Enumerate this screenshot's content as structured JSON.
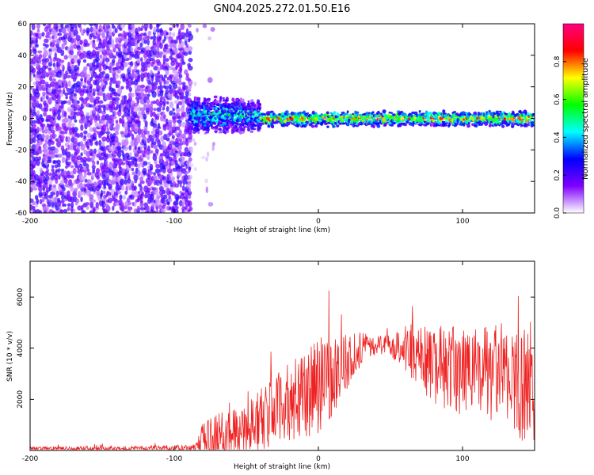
{
  "title": "GN04.2025.272.01.50.E16",
  "chart_data": [
    {
      "type": "heatmap",
      "name": "spectrogram",
      "xlabel": "Height of straight line (km)",
      "ylabel": "Frequency (Hz)",
      "xlim": [
        -200,
        150
      ],
      "ylim": [
        -60,
        60
      ],
      "xticks": [
        -200,
        -100,
        0,
        100
      ],
      "xtick_labels": [
        "-200",
        "-100",
        "0",
        "100"
      ],
      "yticks": [
        -60,
        -40,
        -20,
        0,
        20,
        40,
        60
      ],
      "ytick_labels": [
        "-60",
        "-40",
        "-20",
        "0",
        "20",
        "40",
        "60"
      ],
      "colorbar": {
        "label": "Normalized spectral amplitude",
        "range": [
          0,
          1
        ],
        "ticks": [
          0,
          0.2,
          0.4,
          0.6,
          0.8
        ],
        "tick_labels": [
          "0.0",
          "0.2",
          "0.4",
          "0.6",
          "0.8"
        ],
        "colormap": [
          "#ffffff",
          "#7f00ff",
          "#0000ff",
          "#00ffff",
          "#00ff00",
          "#ffff00",
          "#ff0000",
          "#ff007f"
        ]
      },
      "regions": [
        {
          "kind": "noise",
          "x": [
            -200,
            -89
          ],
          "y": [
            -60,
            60
          ],
          "amplitude": [
            0.05,
            0.25
          ]
        },
        {
          "kind": "sparse-noise",
          "x": [
            -89,
            -70
          ],
          "y": [
            -55,
            60
          ],
          "amplitude": [
            0.02,
            0.1
          ]
        },
        {
          "kind": "signal-broad",
          "x": [
            -90,
            -40
          ],
          "y_center": 2,
          "y_halfwidth": 10,
          "amplitude": [
            0.2,
            0.6
          ]
        },
        {
          "kind": "signal-narrow",
          "x": [
            -40,
            150
          ],
          "y_center": 0,
          "y_halfwidth": 4,
          "amplitude": [
            0.4,
            0.95
          ]
        }
      ]
    },
    {
      "type": "line",
      "name": "snr",
      "xlabel": "Height of straight line (km)",
      "ylabel": "SNR (10 * v/v)",
      "xlim": [
        -200,
        150
      ],
      "ylim": [
        0,
        7400
      ],
      "xticks": [
        -200,
        -100,
        0,
        100
      ],
      "xtick_labels": [
        "-200",
        "-100",
        "0",
        "100"
      ],
      "yticks": [
        2000,
        4000,
        6000
      ],
      "ytick_labels": [
        "2000",
        "4000",
        "6000"
      ],
      "color": "#ee2222",
      "envelope": {
        "x": [
          -200,
          -120,
          -85,
          -82,
          -78,
          -70,
          -60,
          -50,
          -40,
          -30,
          -20,
          -10,
          0,
          10,
          20,
          30,
          40,
          50,
          60,
          70,
          80,
          90,
          100,
          110,
          120,
          130,
          140,
          150
        ],
        "base": [
          60,
          80,
          100,
          200,
          400,
          500,
          700,
          900,
          1200,
          1600,
          1900,
          2100,
          2500,
          3000,
          3500,
          4000,
          4100,
          4150,
          4000,
          3600,
          3300,
          3200,
          3100,
          3000,
          3000,
          2900,
          2600,
          2500
        ],
        "spread": [
          120,
          150,
          200,
          900,
          1300,
          1300,
          1500,
          1600,
          1800,
          1900,
          2200,
          2400,
          2700,
          2300,
          1600,
          900,
          500,
          600,
          1400,
          1900,
          2200,
          2400,
          2500,
          2600,
          2800,
          3000,
          3200,
          3000
        ]
      }
    }
  ]
}
